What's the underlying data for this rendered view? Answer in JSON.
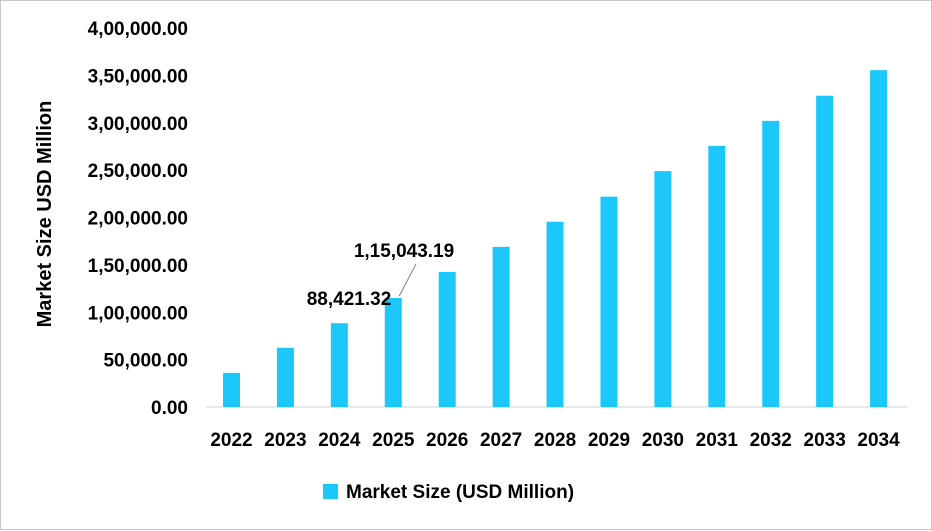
{
  "chart_data": {
    "type": "bar",
    "title": "",
    "xlabel": "",
    "ylabel": "Market Size USD Million",
    "ylim": [
      0,
      400000
    ],
    "yticks": [
      0,
      50000,
      100000,
      150000,
      200000,
      250000,
      300000,
      350000,
      400000
    ],
    "ytick_labels": [
      "0.00",
      "50,000.00",
      "1,00,000.00",
      "1,50,000.00",
      "2,00,000.00",
      "2,50,000.00",
      "3,00,000.00",
      "3,50,000.00",
      "4,00,000.00"
    ],
    "categories": [
      "2022",
      "2023",
      "2024",
      "2025",
      "2026",
      "2027",
      "2028",
      "2029",
      "2030",
      "2031",
      "2032",
      "2033",
      "2034"
    ],
    "series": [
      {
        "name": "Market Size (USD Million)",
        "color": "#1CC7FA",
        "values": [
          36000,
          62500,
          88421.32,
          115043.19,
          142500,
          169000,
          195500,
          222000,
          249000,
          275500,
          302000,
          328500,
          355500
        ]
      }
    ],
    "data_labels": [
      {
        "category": "2024",
        "text": "88,421.32"
      },
      {
        "category": "2025",
        "text": "1,15,043.19"
      }
    ],
    "grid": false,
    "legend": "bottom"
  }
}
